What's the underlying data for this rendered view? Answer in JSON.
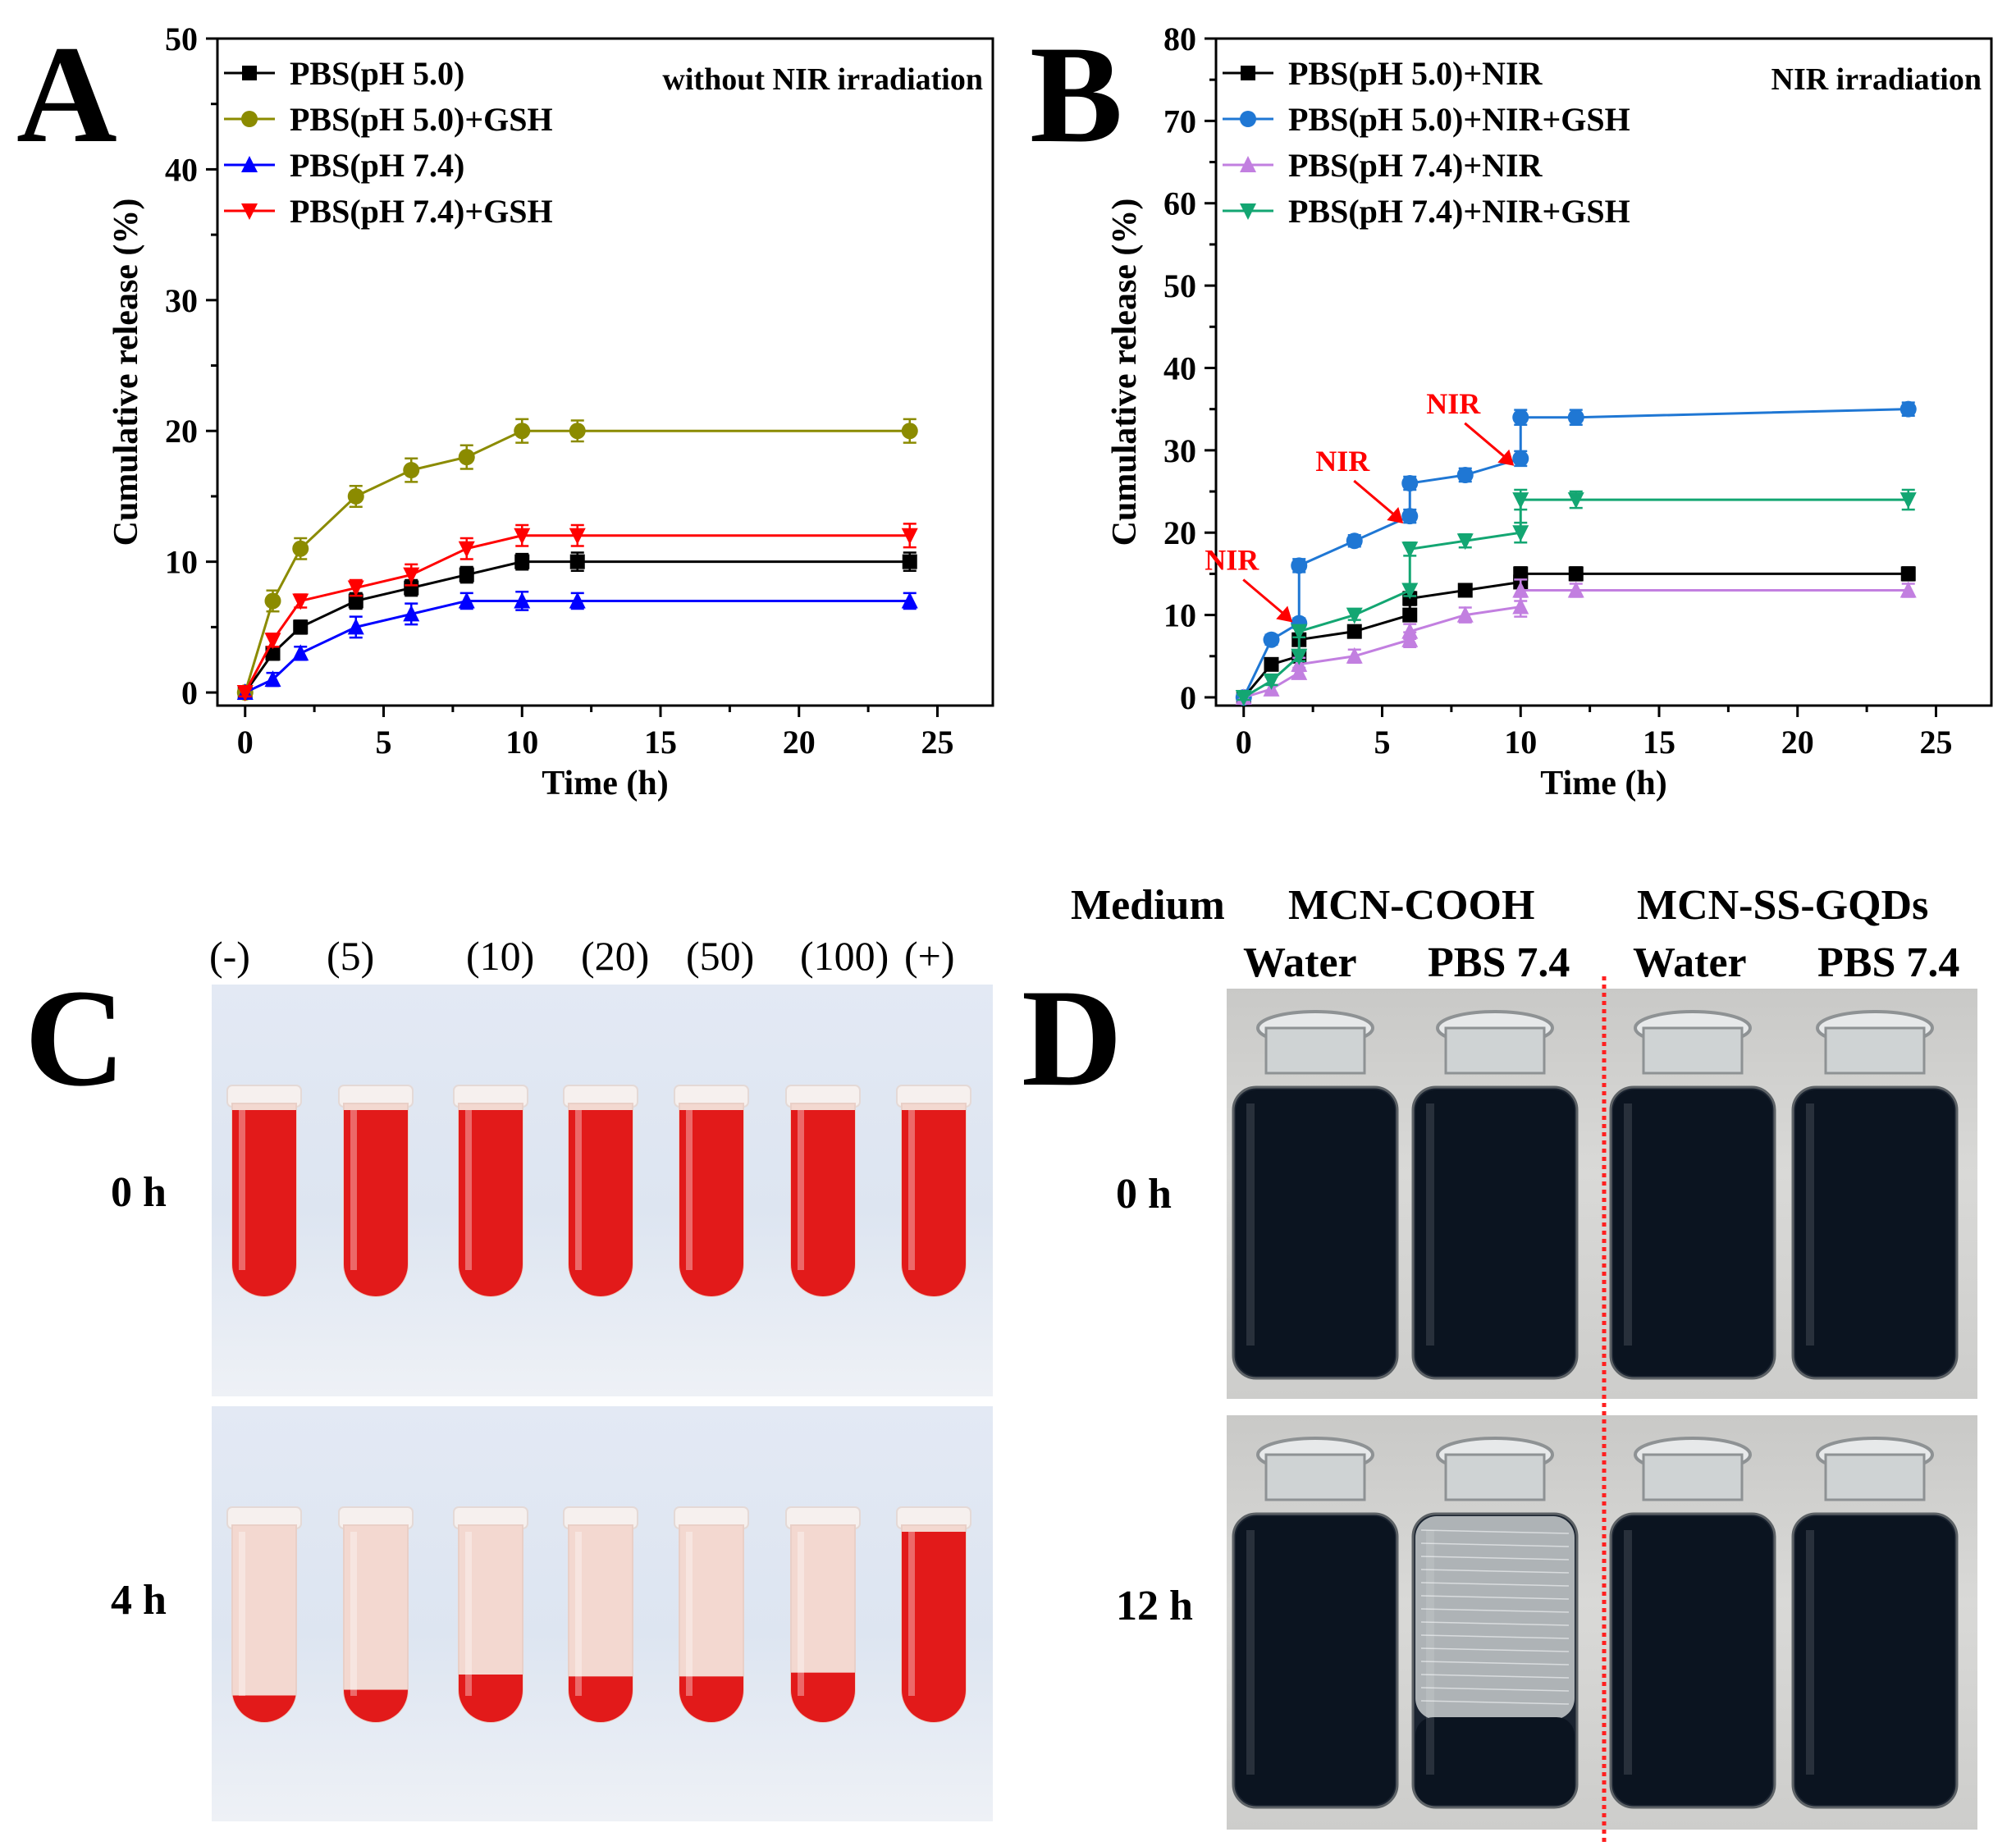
{
  "panels": {
    "A": {
      "letter": "A"
    },
    "B": {
      "letter": "B"
    },
    "C": {
      "letter": "C"
    },
    "D": {
      "letter": "D"
    }
  },
  "chart_data": [
    {
      "id": "A",
      "type": "line",
      "title": "without NIR irradiation",
      "xlabel": "Time (h)",
      "ylabel": "Cumulative release (%)",
      "xlim": [
        -1,
        27
      ],
      "ylim": [
        -1,
        50
      ],
      "xticks": [
        0,
        5,
        10,
        15,
        20,
        25
      ],
      "yticks": [
        0,
        10,
        20,
        30,
        40,
        50
      ],
      "legend_position": "top-left",
      "x": [
        0,
        1,
        2,
        4,
        6,
        8,
        10,
        12,
        24
      ],
      "series": [
        {
          "name": "PBS(pH 5.0)",
          "color": "#000000",
          "marker": "square",
          "values": [
            0,
            3,
            5,
            7,
            8,
            9,
            10,
            10,
            10
          ],
          "error": [
            0.3,
            0.5,
            0.5,
            0.6,
            0.6,
            0.6,
            0.6,
            0.7,
            0.7
          ]
        },
        {
          "name": "PBS(pH 5.0)+GSH",
          "color": "#8b8b00",
          "marker": "circle",
          "values": [
            0,
            7,
            11,
            15,
            17,
            18,
            20,
            20,
            20
          ],
          "error": [
            0.3,
            0.8,
            0.8,
            0.8,
            0.9,
            0.9,
            0.9,
            0.8,
            0.9
          ]
        },
        {
          "name": "PBS(pH 7.4)",
          "color": "#0000ff",
          "marker": "triangle-up",
          "values": [
            0,
            1,
            3,
            5,
            6,
            7,
            7,
            7,
            7
          ],
          "error": [
            0.3,
            0.5,
            0.5,
            0.8,
            0.8,
            0.6,
            0.7,
            0.6,
            0.6
          ]
        },
        {
          "name": "PBS(pH 7.4)+GSH",
          "color": "#ff0000",
          "marker": "triangle-down",
          "values": [
            0,
            4,
            7,
            8,
            9,
            11,
            12,
            12,
            12
          ],
          "error": [
            0.3,
            0.5,
            0.5,
            0.6,
            0.8,
            0.8,
            0.8,
            0.8,
            0.9
          ]
        }
      ]
    },
    {
      "id": "B",
      "type": "line",
      "title": "NIR irradiation",
      "xlabel": "Time (h)",
      "ylabel": "Cumulative release (%)",
      "xlim": [
        -1,
        27
      ],
      "ylim": [
        -1,
        80
      ],
      "xticks": [
        0,
        5,
        10,
        15,
        20,
        25
      ],
      "yticks": [
        0,
        10,
        20,
        30,
        40,
        50,
        60,
        70,
        80
      ],
      "legend_position": "top-left",
      "series": [
        {
          "name": "PBS(pH 5.0)+NIR",
          "color": "#000000",
          "marker": "square",
          "x": [
            0,
            1,
            2,
            2,
            4,
            6,
            6,
            8,
            10,
            10,
            12,
            24
          ],
          "values": [
            0,
            4,
            5,
            7,
            8,
            10,
            12,
            13,
            14,
            15,
            15,
            15
          ],
          "error": [
            0.3,
            0.5,
            0.6,
            0.6,
            0.5,
            0.6,
            0.8,
            0.6,
            0.6,
            0.8,
            0.8,
            0.8
          ]
        },
        {
          "name": "PBS(pH 5.0)+NIR+GSH",
          "color": "#1f77d4",
          "marker": "circle",
          "x": [
            0,
            1,
            2,
            2,
            4,
            6,
            6,
            8,
            10,
            10,
            12,
            24
          ],
          "values": [
            0,
            7,
            9,
            16,
            19,
            22,
            26,
            27,
            29,
            34,
            34,
            35
          ],
          "error": [
            0.3,
            0.6,
            0.6,
            0.8,
            0.7,
            0.8,
            0.8,
            0.8,
            0.9,
            0.9,
            0.9,
            0.8
          ]
        },
        {
          "name": "PBS(pH 7.4)+NIR",
          "color": "#c27fe0",
          "marker": "triangle-up",
          "x": [
            0,
            1,
            2,
            2,
            4,
            6,
            6,
            8,
            10,
            10,
            12,
            24
          ],
          "values": [
            0,
            1,
            3,
            4,
            5,
            7,
            8,
            10,
            11,
            13,
            13,
            13
          ],
          "error": [
            0.3,
            0.5,
            0.6,
            0.8,
            0.8,
            0.9,
            0.9,
            0.9,
            1.2,
            1.3,
            0.8,
            0.8
          ]
        },
        {
          "name": "PBS(pH 7.4)+NIR+GSH",
          "color": "#13a672",
          "marker": "triangle-down",
          "x": [
            0,
            1,
            2,
            2,
            4,
            6,
            6,
            8,
            10,
            10,
            12,
            24
          ],
          "values": [
            0,
            2,
            5,
            8,
            10,
            13,
            18,
            19,
            20,
            24,
            24,
            24
          ],
          "error": [
            0.3,
            0.5,
            0.6,
            0.7,
            0.6,
            0.7,
            0.8,
            0.8,
            1.2,
            1.2,
            1.0,
            1.2
          ]
        }
      ],
      "annotations": [
        {
          "text": "NIR",
          "x": 2,
          "y": 12.5,
          "color": "#ff0000"
        },
        {
          "text": "NIR",
          "x": 6,
          "y": 24.5,
          "color": "#ff0000"
        },
        {
          "text": "NIR",
          "x": 10,
          "y": 31.5,
          "color": "#ff0000"
        }
      ]
    }
  ],
  "panelC": {
    "concentrations": [
      "(-)",
      "(5)",
      "(10)",
      "(20)",
      "(50)",
      "(100)",
      "(+)"
    ],
    "rows": [
      {
        "label": "0 h",
        "fill_fraction": [
          1,
          1,
          1,
          1,
          1,
          1,
          1
        ]
      },
      {
        "label": "4 h",
        "fill_fraction": [
          0.14,
          0.17,
          0.25,
          0.24,
          0.24,
          0.26,
          1
        ]
      }
    ],
    "colors": {
      "background": "#dfe7f3",
      "blood": "#e21a1a",
      "clear": "#f3d8d0"
    }
  },
  "panelD": {
    "medium_label": "Medium",
    "groups": [
      "MCN-COOH",
      "MCN-SS-GQDs"
    ],
    "solvents": [
      "Water",
      "PBS 7.4",
      "Water",
      "PBS 7.4"
    ],
    "rows": [
      {
        "label": "0 h",
        "settled": [
          false,
          false,
          false,
          false
        ]
      },
      {
        "label": "12 h",
        "settled": [
          false,
          true,
          false,
          false
        ]
      }
    ],
    "colors": {
      "background": "#d6d6d4",
      "liquid": "#0b1420",
      "divider": "#ff2020"
    }
  }
}
